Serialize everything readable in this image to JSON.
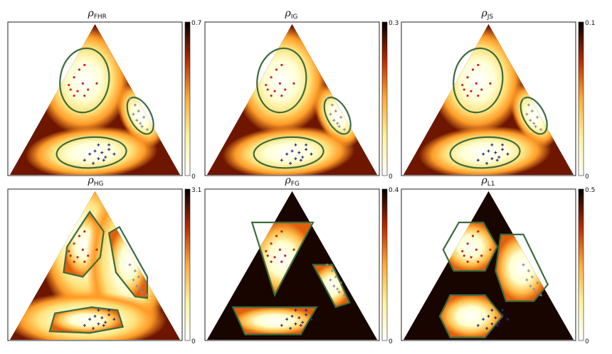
{
  "chart_data": {
    "type": "heatmap",
    "layout": "2x3 grid of ternary heatmaps",
    "colormap": "afmhot_r",
    "contour_color": "#3d6b3d",
    "marker_colors": {
      "class_a": "#cc2222",
      "class_b": "#8a8aa0",
      "class_c": "#2a2a7a"
    },
    "panels": [
      {
        "title": "ρ",
        "subscript": "FHR",
        "colorbar": {
          "max": "0.7",
          "min": "0"
        },
        "shape": "ellipse"
      },
      {
        "title": "ρ",
        "subscript": "IG",
        "colorbar": {
          "max": "0.3",
          "min": "0"
        },
        "shape": "ellipse"
      },
      {
        "title": "ρ",
        "subscript": "JS",
        "colorbar": {
          "max": "0.1",
          "min": "0"
        },
        "shape": "ellipse"
      },
      {
        "title": "ρ",
        "subscript": "HG",
        "colorbar": {
          "max": "3.1",
          "min": "0"
        },
        "shape": "polygon"
      },
      {
        "title": "ρ",
        "subscript": "FG",
        "colorbar": {
          "max": "0.4",
          "min": "0"
        },
        "shape": "triangle"
      },
      {
        "title": "ρ",
        "subscript": "L1",
        "colorbar": {
          "max": "0.5",
          "min": "0"
        },
        "shape": "hexagon"
      }
    ]
  }
}
